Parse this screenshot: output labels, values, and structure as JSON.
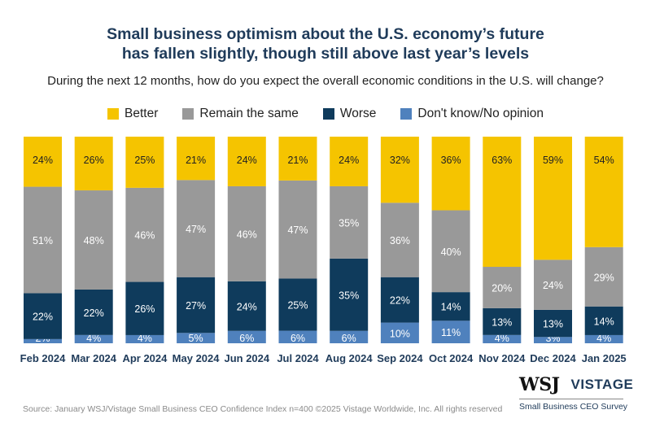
{
  "header": {
    "title_line1": "Small business optimism about the U.S. economy’s future",
    "title_line2": "has fallen slightly, though still above last year’s levels",
    "question": "During the next 12 months, how do you expect the overall economic conditions in the U.S. will change?"
  },
  "legend": [
    {
      "label": "Better",
      "color": "#f5c400"
    },
    {
      "label": "Remain the same",
      "color": "#999999"
    },
    {
      "label": "Worse",
      "color": "#0f3b5c"
    },
    {
      "label": "Don't know/No opinion",
      "color": "#4f81bd"
    }
  ],
  "chart_data": {
    "type": "bar",
    "stacked": true,
    "percent": true,
    "categories": [
      "Feb 2024",
      "Mar 2024",
      "Apr 2024",
      "May 2024",
      "Jun 2024",
      "Jul 2024",
      "Aug 2024",
      "Sep 2024",
      "Oct 2024",
      "Nov 2024",
      "Dec 2024",
      "Jan 2025"
    ],
    "series": [
      {
        "name": "Don't know/No opinion",
        "color": "#4f81bd",
        "values": [
          2,
          4,
          4,
          5,
          6,
          6,
          6,
          10,
          11,
          4,
          3,
          4
        ]
      },
      {
        "name": "Worse",
        "color": "#0f3b5c",
        "values": [
          22,
          22,
          26,
          27,
          24,
          25,
          35,
          22,
          14,
          13,
          13,
          14
        ]
      },
      {
        "name": "Remain the same",
        "color": "#999999",
        "values": [
          51,
          48,
          46,
          47,
          46,
          47,
          35,
          36,
          40,
          20,
          24,
          29
        ]
      },
      {
        "name": "Better",
        "color": "#f5c400",
        "values": [
          24,
          26,
          25,
          21,
          24,
          21,
          24,
          32,
          36,
          63,
          59,
          54
        ]
      }
    ],
    "ylim": [
      0,
      100
    ]
  },
  "footer": {
    "source": "Source: January WSJ/Vistage Small Business CEO Confidence Index n=400 ©2025 Vistage Worldwide, Inc. All rights reserved",
    "brand_left": "WSJ",
    "brand_right": "VISTAGE",
    "brand_sub": "Small Business CEO Survey"
  }
}
